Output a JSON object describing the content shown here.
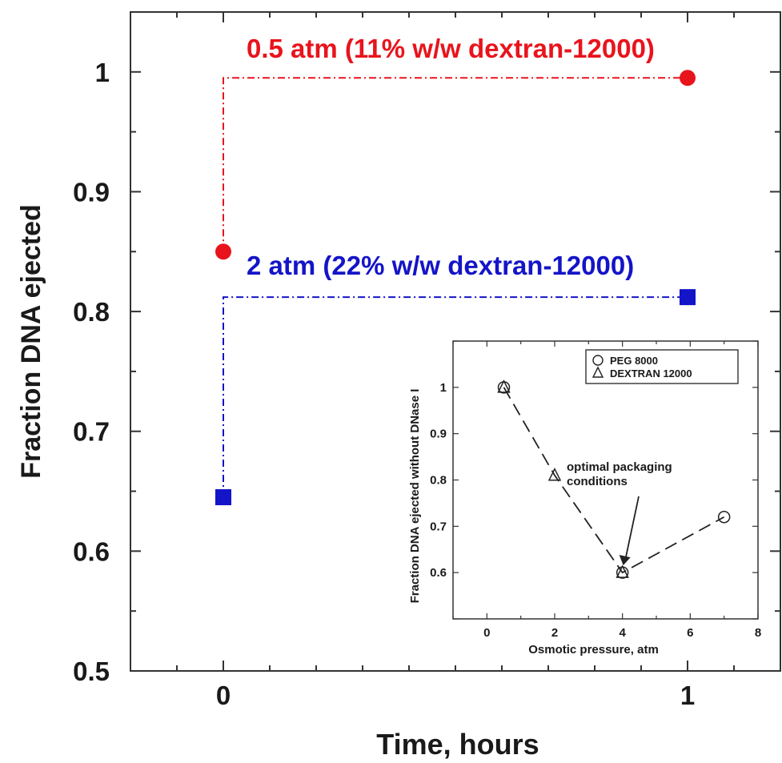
{
  "chart_data": [
    {
      "type": "line",
      "xlabel": "Time, hours",
      "ylabel": "Fraction DNA ejected",
      "xlim": [
        -0.2,
        1.2
      ],
      "ylim": [
        0.5,
        1.05
      ],
      "xticks": [
        0,
        1
      ],
      "yticks": [
        0.5,
        0.6,
        0.7,
        0.8,
        0.9,
        1
      ],
      "ytick_labels": [
        "0.5",
        "0.6",
        "0.7",
        "0.8",
        "0.9",
        "1"
      ],
      "xtick_labels": [
        "0",
        "1"
      ],
      "grid": false,
      "series": [
        {
          "name": "0.5 atm (11% w/w dextran-12000)",
          "color": "#e8141c",
          "marker": "circle",
          "line_style": "dash-dot",
          "x": [
            0,
            1
          ],
          "y": [
            0.85,
            0.995
          ]
        },
        {
          "name": "2 atm (22% w/w dextran-12000)",
          "color": "#1414c8",
          "marker": "square",
          "line_style": "dash-dot",
          "x": [
            0,
            1
          ],
          "y": [
            0.645,
            0.812
          ]
        }
      ]
    },
    {
      "type": "scatter",
      "role": "inset",
      "xlabel": "Osmotic pressure, atm",
      "ylabel": "Fraction DNA ejected without DNase I",
      "xlim": [
        -1,
        8
      ],
      "ylim": [
        0.5,
        1.1
      ],
      "xticks": [
        0,
        2,
        4,
        6,
        8
      ],
      "xtick_labels": [
        "0",
        "2",
        "4",
        "6",
        "8"
      ],
      "yticks": [
        0.6,
        0.7,
        0.8,
        0.9,
        1
      ],
      "ytick_labels": [
        "0.6",
        "0.7",
        "0.8",
        "0.9",
        "1"
      ],
      "legend_position": "top-right",
      "series": [
        {
          "name": "PEG 8000",
          "marker": "open-circle",
          "x": [
            0.5,
            4,
            7
          ],
          "y": [
            1.0,
            0.6,
            0.72
          ]
        },
        {
          "name": "DEXTRAN 12000",
          "marker": "open-triangle",
          "x": [
            0.5,
            2,
            4
          ],
          "y": [
            1.0,
            0.81,
            0.6
          ]
        }
      ],
      "trend_line": {
        "style": "long-dash",
        "x": [
          0.5,
          2,
          4,
          7
        ],
        "y": [
          1.0,
          0.81,
          0.6,
          0.72
        ]
      },
      "annotation": {
        "text_lines": [
          "optimal packaging",
          "conditions"
        ],
        "x": 4,
        "y": 0.6
      }
    }
  ]
}
